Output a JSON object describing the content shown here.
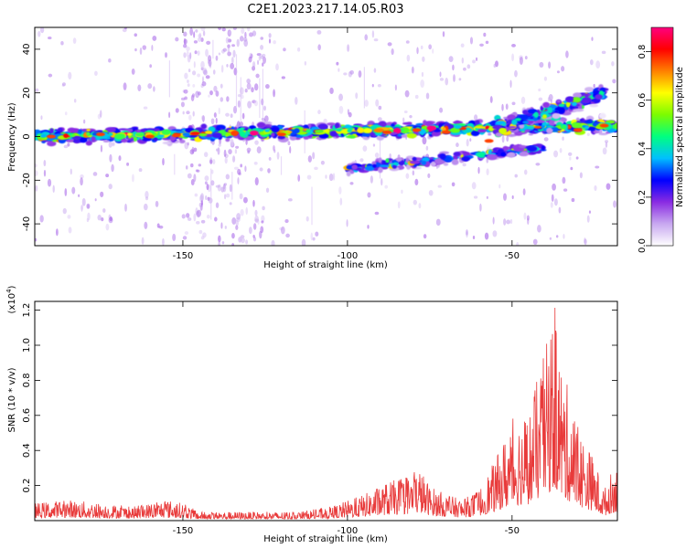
{
  "title": "C2E1.2023.217.14.05.R03",
  "colors": {
    "frame": "#000000",
    "snr_line": "#e83a3a",
    "background": "#ffffff"
  },
  "chart_data": [
    {
      "type": "heatmap",
      "title": "",
      "xlabel": "Height of straight line (km)",
      "ylabel": "Frequency (Hz)",
      "xlim": [
        -195,
        -18
      ],
      "ylim": [
        -50,
        50
      ],
      "xticks": [
        -150,
        -100,
        -50
      ],
      "yticks": [
        -40,
        -20,
        0,
        20,
        40
      ],
      "colorbar": {
        "label": "Normalized spectral amplitude",
        "range": [
          0,
          0.9
        ],
        "ticks": [
          "0.0",
          "0.2",
          "0.4",
          "0.6",
          "0.8"
        ],
        "tick_values": [
          0.0,
          0.2,
          0.4,
          0.6,
          0.8
        ],
        "colormap": [
          "#ffffff",
          "#c8a8f0",
          "#8a2be2",
          "#0000ff",
          "#00bfff",
          "#00ff80",
          "#7cfc00",
          "#ffff00",
          "#ff8000",
          "#ff0000",
          "#ff0080"
        ]
      },
      "features": [
        {
          "name": "main band",
          "x_range": [
            -195,
            -18
          ],
          "frequency_at_start": 0,
          "frequency_at_end": 5
        },
        {
          "name": "upper branch",
          "x_range": [
            -55,
            -22
          ],
          "frequency_at_start": 4,
          "frequency_at_end": 20
        },
        {
          "name": "lower branch",
          "x_range": [
            -100,
            -40
          ],
          "frequency_at_start": -15,
          "frequency_at_end": -5
        }
      ]
    },
    {
      "type": "line",
      "title": "",
      "xlabel": "Height of straight line (km)",
      "ylabel": "SNR (10 * v/v)",
      "y_multiplier_label": "(x10",
      "y_multiplier_exp": "4",
      "y_multiplier_close": ")",
      "xlim": [
        -195,
        -18
      ],
      "ylim": [
        0,
        1.25
      ],
      "xticks": [
        -150,
        -100,
        -50
      ],
      "yticks": [
        0.2,
        0.4,
        0.6,
        0.8,
        1.0,
        1.2
      ],
      "ytick_labels": [
        "0.2",
        "0.4",
        "0.6",
        "0.8",
        "1.0",
        "1.2"
      ],
      "envelope": {
        "x": [
          -195,
          -185,
          -175,
          -165,
          -155,
          -150,
          -145,
          -135,
          -125,
          -115,
          -105,
          -95,
          -88,
          -82,
          -78,
          -75,
          -70,
          -65,
          -60,
          -55,
          -50,
          -45,
          -40,
          -37,
          -35,
          -30,
          -25,
          -22,
          -19
        ],
        "y": [
          0.1,
          0.12,
          0.1,
          0.08,
          0.12,
          0.1,
          0.05,
          0.05,
          0.05,
          0.05,
          0.08,
          0.15,
          0.22,
          0.25,
          0.3,
          0.2,
          0.15,
          0.12,
          0.18,
          0.35,
          0.58,
          0.62,
          0.98,
          1.22,
          0.9,
          0.55,
          0.35,
          0.18,
          0.32
        ]
      }
    }
  ]
}
